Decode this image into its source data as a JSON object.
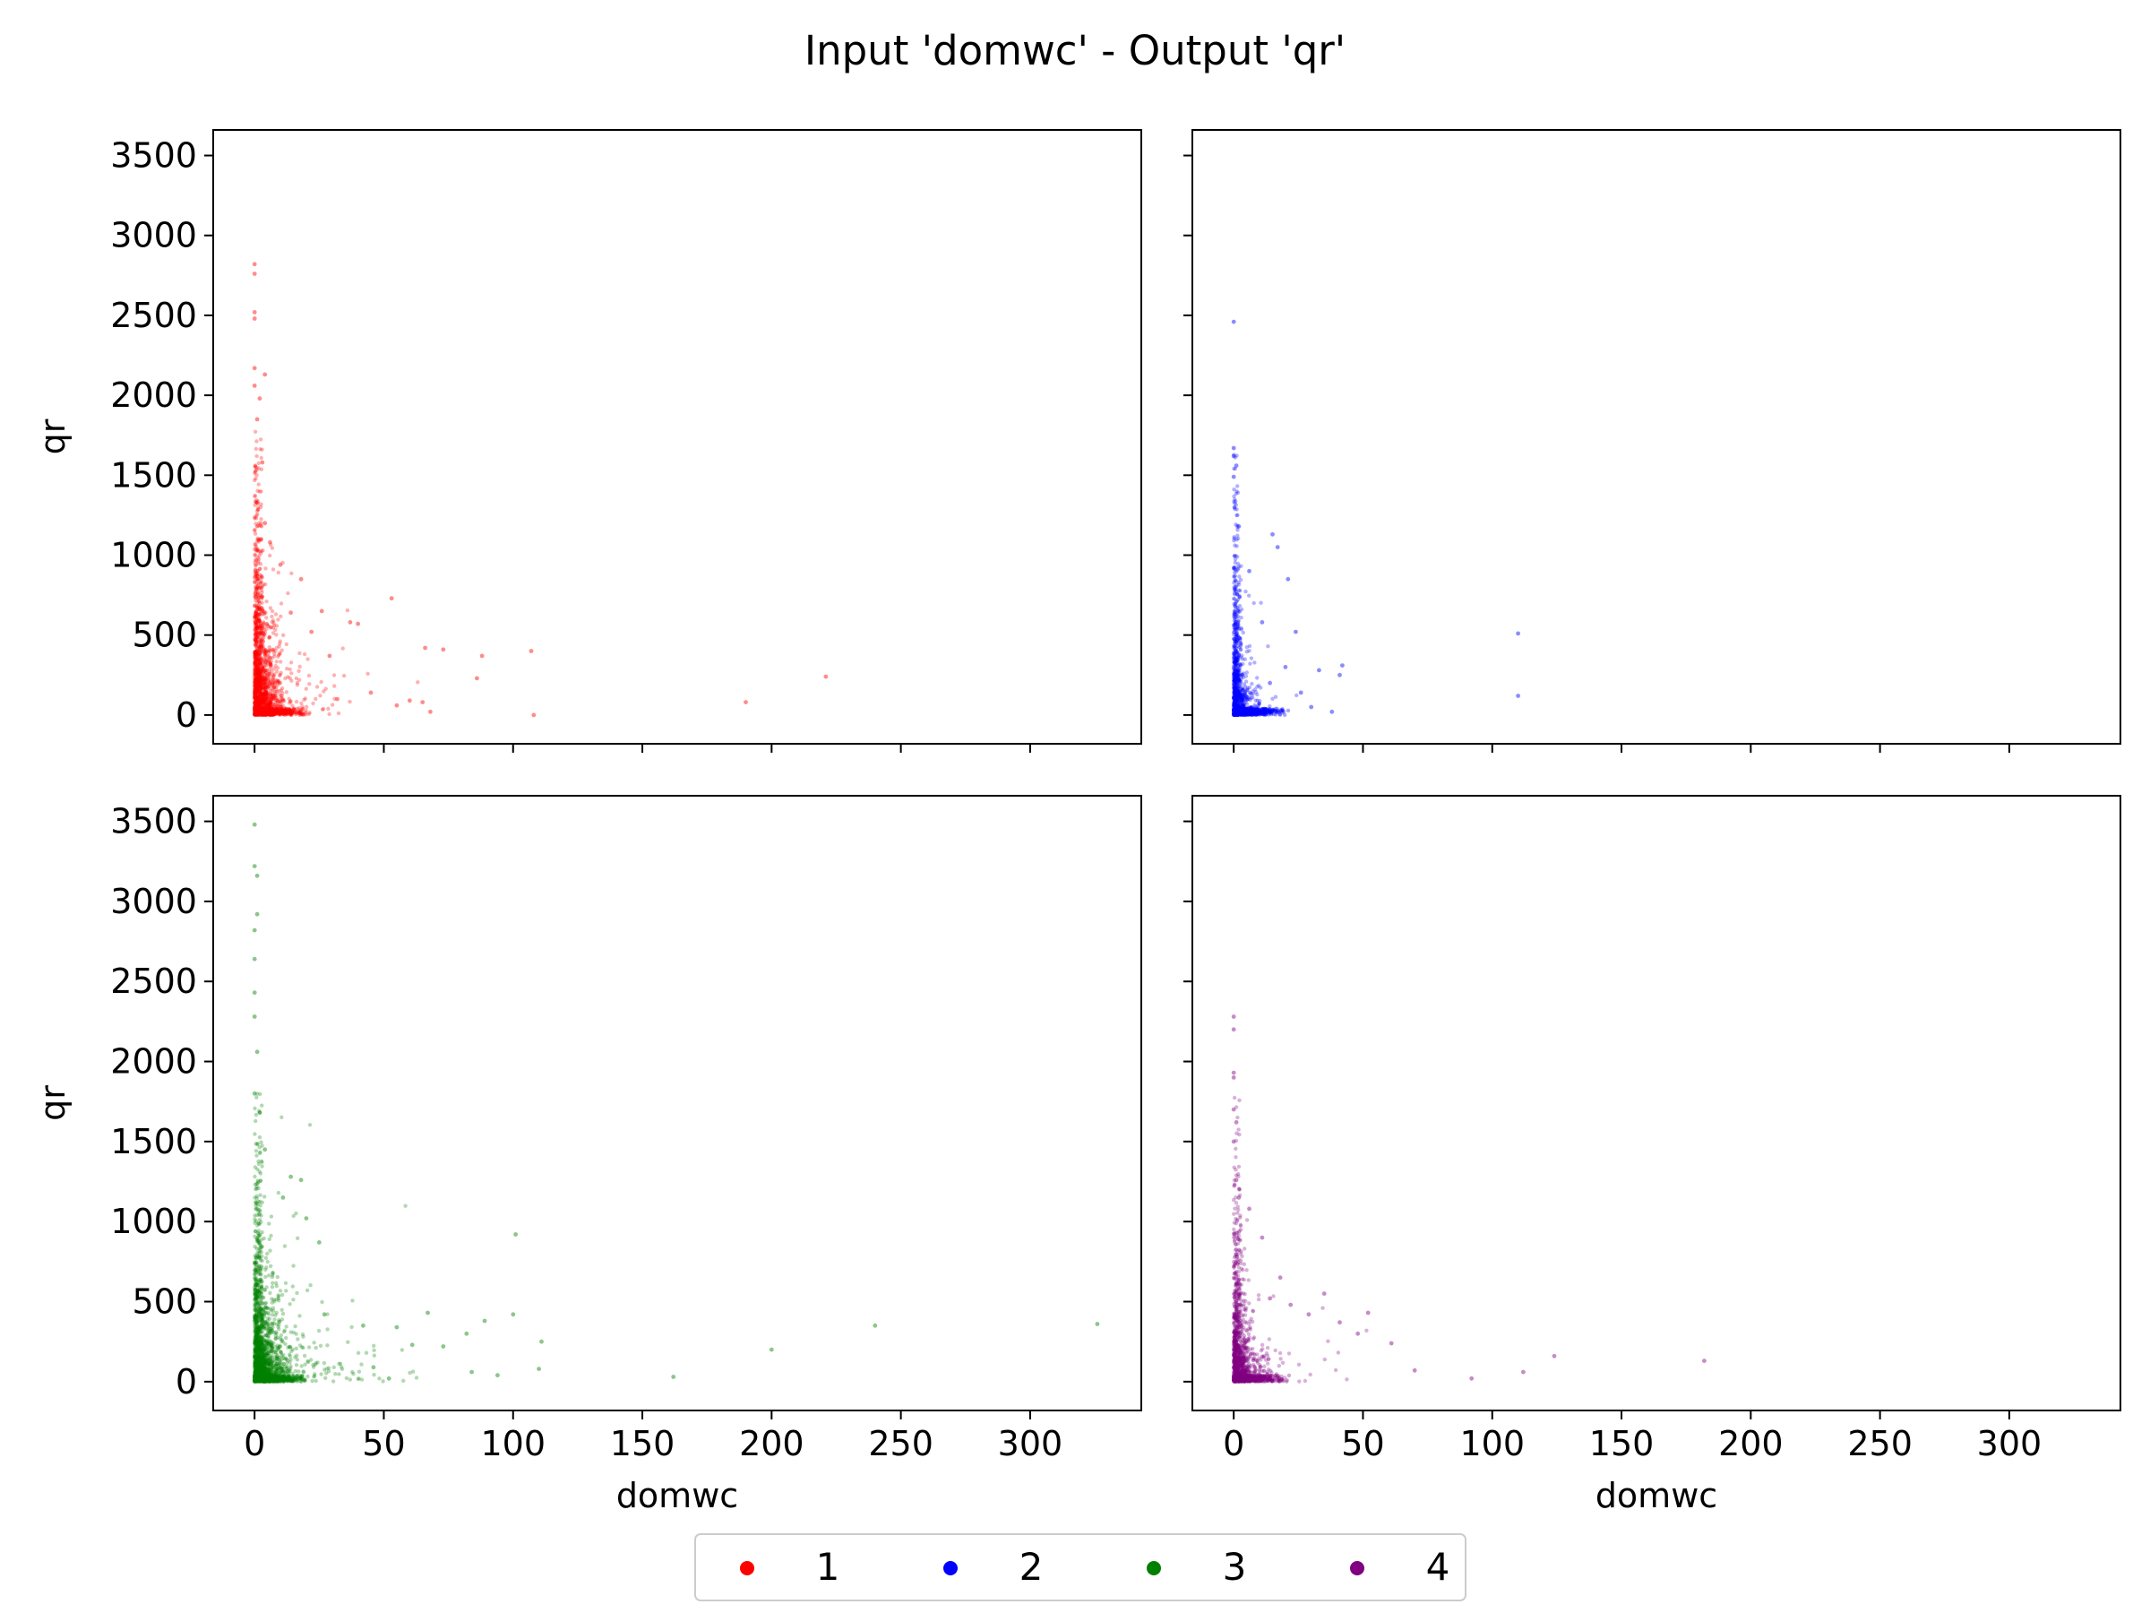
{
  "chart_data": {
    "type": "scatter",
    "title": "Input 'domwc' - Output 'qr'",
    "xlabel": "domwc",
    "ylabel": "qr",
    "xlim": [
      -16,
      343
    ],
    "ylim": [
      -180,
      3660
    ],
    "xticks": [
      0,
      50,
      100,
      150,
      200,
      250,
      300
    ],
    "yticks": [
      0,
      500,
      1000,
      1500,
      2000,
      2500,
      3000,
      3500
    ],
    "grid": false,
    "legend_position": "bottom-center",
    "legend": [
      "1",
      "2",
      "3",
      "4"
    ],
    "panels": [
      {
        "series": "1",
        "color": "#ff0000",
        "outliers": [
          [
            0,
            2820
          ],
          [
            0,
            2760
          ],
          [
            0,
            2520
          ],
          [
            0,
            2480
          ],
          [
            0,
            2170
          ],
          [
            4,
            2130
          ],
          [
            0,
            2060
          ],
          [
            2,
            1980
          ],
          [
            1,
            1850
          ],
          [
            3,
            1580
          ],
          [
            4,
            1200
          ],
          [
            6,
            1080
          ],
          [
            10,
            940
          ],
          [
            18,
            850
          ],
          [
            26,
            650
          ],
          [
            37,
            580
          ],
          [
            40,
            570
          ],
          [
            53,
            730
          ],
          [
            66,
            420
          ],
          [
            73,
            410
          ],
          [
            88,
            370
          ],
          [
            107,
            400
          ],
          [
            86,
            230
          ],
          [
            55,
            60
          ],
          [
            60,
            90
          ],
          [
            65,
            80
          ],
          [
            68,
            20
          ],
          [
            108,
            0
          ],
          [
            190,
            80
          ],
          [
            221,
            240
          ],
          [
            32,
            100
          ],
          [
            45,
            140
          ],
          [
            29,
            370
          ],
          [
            22,
            520
          ],
          [
            14,
            640
          ]
        ]
      },
      {
        "series": "2",
        "color": "#0000ff",
        "outliers": [
          [
            0,
            2460
          ],
          [
            0,
            1670
          ],
          [
            0,
            1620
          ],
          [
            1,
            1560
          ],
          [
            0,
            1490
          ],
          [
            2,
            1180
          ],
          [
            15,
            1130
          ],
          [
            17,
            1050
          ],
          [
            21,
            850
          ],
          [
            6,
            900
          ],
          [
            11,
            580
          ],
          [
            24,
            520
          ],
          [
            33,
            280
          ],
          [
            42,
            310
          ],
          [
            41,
            250
          ],
          [
            30,
            50
          ],
          [
            38,
            20
          ],
          [
            110,
            510
          ],
          [
            110,
            120
          ],
          [
            20,
            300
          ],
          [
            14,
            200
          ],
          [
            26,
            140
          ]
        ]
      },
      {
        "series": "3",
        "color": "#008000",
        "outliers": [
          [
            0,
            3480
          ],
          [
            0,
            3220
          ],
          [
            1,
            3160
          ],
          [
            1,
            2920
          ],
          [
            0,
            2820
          ],
          [
            0,
            2640
          ],
          [
            0,
            2430
          ],
          [
            0,
            2280
          ],
          [
            1,
            2060
          ],
          [
            0,
            1800
          ],
          [
            2,
            1680
          ],
          [
            4,
            1450
          ],
          [
            14,
            1280
          ],
          [
            18,
            1260
          ],
          [
            11,
            1150
          ],
          [
            25,
            870
          ],
          [
            20,
            1020
          ],
          [
            27,
            420
          ],
          [
            42,
            350
          ],
          [
            55,
            340
          ],
          [
            67,
            430
          ],
          [
            82,
            300
          ],
          [
            89,
            380
          ],
          [
            100,
            420
          ],
          [
            101,
            920
          ],
          [
            111,
            250
          ],
          [
            110,
            80
          ],
          [
            84,
            60
          ],
          [
            94,
            40
          ],
          [
            162,
            30
          ],
          [
            200,
            200
          ],
          [
            240,
            350
          ],
          [
            326,
            360
          ],
          [
            61,
            230
          ],
          [
            73,
            220
          ],
          [
            52,
            20
          ],
          [
            46,
            90
          ]
        ]
      },
      {
        "series": "4",
        "color": "#800080",
        "outliers": [
          [
            0,
            2280
          ],
          [
            0,
            2200
          ],
          [
            0,
            1930
          ],
          [
            0,
            1900
          ],
          [
            0,
            1700
          ],
          [
            1,
            1620
          ],
          [
            0,
            1500
          ],
          [
            1,
            1260
          ],
          [
            2,
            1150
          ],
          [
            6,
            1080
          ],
          [
            11,
            900
          ],
          [
            18,
            650
          ],
          [
            35,
            550
          ],
          [
            52,
            430
          ],
          [
            41,
            370
          ],
          [
            48,
            300
          ],
          [
            61,
            240
          ],
          [
            70,
            70
          ],
          [
            92,
            20
          ],
          [
            112,
            60
          ],
          [
            124,
            160
          ],
          [
            182,
            130
          ],
          [
            29,
            420
          ],
          [
            22,
            480
          ],
          [
            14,
            520
          ]
        ]
      }
    ]
  }
}
